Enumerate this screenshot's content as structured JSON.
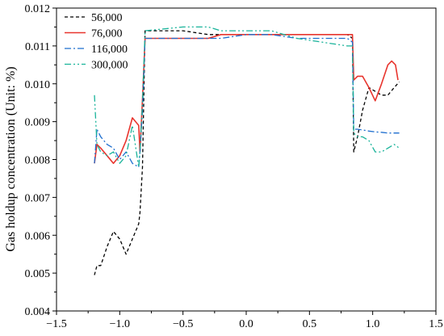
{
  "chart_data": {
    "type": "line",
    "title": "",
    "xlabel": "",
    "ylabel": "Gas holdup concentration (Unit: %)",
    "xlim": [
      -1.5,
      1.5
    ],
    "ylim": [
      0.004,
      0.012
    ],
    "xticks": [
      "−1.5",
      "−1.0",
      "−0.5",
      "0.0",
      "0.5",
      "1.0",
      "1.5"
    ],
    "xtick_values": [
      -1.5,
      -1.0,
      -0.5,
      0.0,
      0.5,
      1.0,
      1.5
    ],
    "yticks": [
      "0.004",
      "0.005",
      "0.006",
      "0.007",
      "0.008",
      "0.009",
      "0.010",
      "0.011",
      "0.012"
    ],
    "ytick_values": [
      0.004,
      0.005,
      0.006,
      0.007,
      0.008,
      0.009,
      0.01,
      0.011,
      0.012
    ],
    "grid": false,
    "legend_position": "top-left",
    "series": [
      {
        "name": "56,000",
        "color": "#000000",
        "dash": "4,3",
        "x": [
          -1.2,
          -1.18,
          -1.15,
          -1.1,
          -1.05,
          -1.0,
          -0.95,
          -0.9,
          -0.85,
          -0.84,
          -0.82,
          -0.8,
          -0.5,
          -0.3,
          -0.2,
          0.0,
          0.2,
          0.4,
          0.6,
          0.8,
          0.84,
          0.85,
          0.88,
          0.92,
          0.97,
          1.02,
          1.07,
          1.12,
          1.17,
          1.21
        ],
        "y": [
          0.00495,
          0.0052,
          0.0052,
          0.0057,
          0.0061,
          0.0059,
          0.0055,
          0.0059,
          0.0063,
          0.0066,
          0.0078,
          0.0114,
          0.0114,
          0.0113,
          0.0113,
          0.0113,
          0.0113,
          0.0113,
          0.0113,
          0.0113,
          0.0112,
          0.0082,
          0.0086,
          0.0093,
          0.0099,
          0.0098,
          0.0097,
          0.0097,
          0.0099,
          0.01005
        ]
      },
      {
        "name": "76,000",
        "color": "#e8352e",
        "dash": "",
        "x": [
          -1.2,
          -1.18,
          -1.15,
          -1.1,
          -1.05,
          -1.0,
          -0.95,
          -0.9,
          -0.85,
          -0.84,
          -0.82,
          -0.8,
          -0.5,
          -0.3,
          -0.2,
          0.0,
          0.2,
          0.4,
          0.6,
          0.8,
          0.84,
          0.85,
          0.88,
          0.92,
          0.97,
          1.02,
          1.07,
          1.12,
          1.15,
          1.18,
          1.2
        ],
        "y": [
          0.0079,
          0.0084,
          0.0083,
          0.0081,
          0.0079,
          0.0081,
          0.0085,
          0.0091,
          0.0089,
          0.0082,
          0.0096,
          0.0112,
          0.0112,
          0.0112,
          0.0113,
          0.0113,
          0.0113,
          0.0113,
          0.0113,
          0.0113,
          0.0113,
          0.0101,
          0.0102,
          0.0102,
          0.0099,
          0.00955,
          0.01,
          0.0105,
          0.0106,
          0.0105,
          0.0101
        ]
      },
      {
        "name": "116,000",
        "color": "#1f6fcf",
        "dash": "8,3,2,3",
        "x": [
          -1.2,
          -1.18,
          -1.15,
          -1.1,
          -1.05,
          -1.0,
          -0.95,
          -0.9,
          -0.85,
          -0.84,
          -0.82,
          -0.8,
          -0.5,
          -0.3,
          -0.2,
          0.0,
          0.2,
          0.4,
          0.6,
          0.8,
          0.84,
          0.85,
          0.88,
          0.92,
          0.97,
          1.02,
          1.07,
          1.12,
          1.17,
          1.21
        ],
        "y": [
          0.0079,
          0.0088,
          0.0086,
          0.0084,
          0.0083,
          0.008,
          0.0082,
          0.0079,
          0.0078,
          0.0082,
          0.0093,
          0.0112,
          0.0112,
          0.0112,
          0.0112,
          0.0113,
          0.0113,
          0.0112,
          0.0112,
          0.0112,
          0.0111,
          0.0088,
          0.0088,
          0.00878,
          0.00875,
          0.00873,
          0.00872,
          0.0087,
          0.0087,
          0.0087
        ]
      },
      {
        "name": "300,000",
        "color": "#19b39a",
        "dash": "8,3,2,3,2,3",
        "x": [
          -1.2,
          -1.18,
          -1.15,
          -1.1,
          -1.05,
          -1.0,
          -0.95,
          -0.9,
          -0.85,
          -0.84,
          -0.82,
          -0.8,
          -0.5,
          -0.3,
          -0.2,
          0.0,
          0.2,
          0.4,
          0.6,
          0.8,
          0.84,
          0.85,
          0.88,
          0.92,
          0.97,
          1.02,
          1.07,
          1.12,
          1.17,
          1.21
        ],
        "y": [
          0.0097,
          0.0084,
          0.0082,
          0.0081,
          0.0082,
          0.0079,
          0.0081,
          0.0089,
          0.0078,
          0.0082,
          0.0095,
          0.0114,
          0.0115,
          0.0115,
          0.0114,
          0.0114,
          0.0114,
          0.0112,
          0.0111,
          0.011,
          0.011,
          0.0087,
          0.0086,
          0.0086,
          0.0085,
          0.0082,
          0.0082,
          0.0083,
          0.0084,
          0.0083
        ]
      }
    ]
  }
}
